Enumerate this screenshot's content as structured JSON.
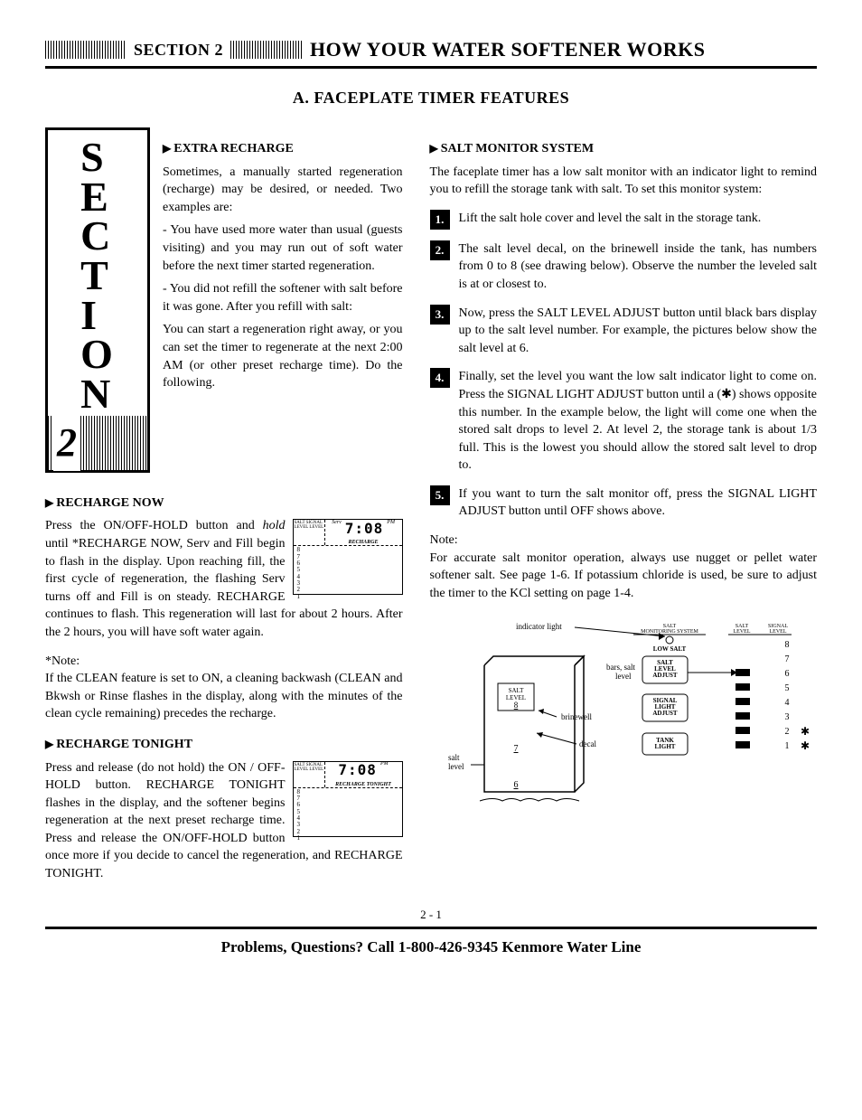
{
  "header": {
    "section_label": "SECTION 2",
    "title": "HOW YOUR WATER SOFTENER WORKS"
  },
  "subtitle": "A. FACEPLATE TIMER FEATURES",
  "side_box": {
    "letters": "S\nE\nC\nT\nI\nO\nN",
    "number": "2"
  },
  "left": {
    "extra_recharge": {
      "heading": "EXTRA RECHARGE",
      "p1": "Sometimes, a manually started regeneration (recharge) may be desired, or needed. Two examples are:",
      "p2": "- You have used more water than usual (guests visiting) and you may run out of soft water before the next timer started regeneration.",
      "p3": "- You did not refill the softener with salt before it was gone. After you refill with salt:",
      "p4": "You can start a regeneration right away, or you can set the timer to regenerate at the next 2:00 AM (or other preset recharge time). Do the following."
    },
    "recharge_now": {
      "heading": "RECHARGE NOW",
      "p1_a": "Press the ON/OFF-HOLD button and ",
      "p1_b": "hold",
      "p1_c": " until *RECHARGE NOW, Serv and Fill begin to flash in the display. Upon reaching fill, the first cycle of regeneration, the flashing Serv turns off and Fill is on steady. RECHARGE continues to flash. This regeneration will last for about 2 hours. After the 2 hours, you will have soft water again.",
      "note_label": "*Note:",
      "note_text": "If the CLEAN feature is set to ON, a cleaning backwash (CLEAN and Bkwsh or Rinse flashes in the display, along with the minutes of the clean cycle remaining) precedes the recharge.",
      "lcd": {
        "header": "SALT SIGNAL\nLEVEL LEVEL",
        "serv": "Serv",
        "pm": "PM",
        "time": "7:08",
        "recharge": "RECHARGE",
        "nums": "8\n7\n6\n5\n4\n3\n2\n1"
      }
    },
    "recharge_tonight": {
      "heading": "RECHARGE TONIGHT",
      "text": "Press and release (do not hold) the ON / OFF-HOLD button. RECHARGE TONIGHT flashes in the display, and the softener begins regeneration at the next preset recharge time. Press and release the ON/OFF-HOLD button once more if you decide to cancel the regeneration, and RECHARGE TONIGHT.",
      "lcd": {
        "header": "SALT SIGNAL\nLEVEL LEVEL",
        "pm": "PM",
        "time": "7:08",
        "recharge": "RECHARGE TONIGHT",
        "nums": "8\n7\n6\n5\n4\n3\n2\n1"
      }
    }
  },
  "right": {
    "salt_monitor": {
      "heading": "SALT MONITOR SYSTEM",
      "intro": "The faceplate timer has a low salt monitor with an indicator light to remind you to refill the storage tank with salt. To set this monitor system:",
      "steps": [
        "Lift the salt hole cover and level the salt in the storage tank.",
        "The salt level decal, on the brinewell inside the tank, has numbers from 0 to 8 (see drawing below). Observe the number the leveled salt is at or closest to.",
        "Now, press the SALT LEVEL ADJUST button until black bars display up to the salt level number. For example, the pictures below show the salt level at 6.",
        "Finally, set the level you want the low salt indicator light to come on. Press the SIGNAL LIGHT ADJUST button until a (✱) shows opposite this number. In the example below, the light will come one when the stored salt drops to level 2. At level 2, the storage tank is about 1/3 full. This is the lowest you should allow the stored salt level to drop to.",
        "If you want to turn the salt monitor off, press the SIGNAL LIGHT ADJUST button until OFF shows above."
      ],
      "note_label": "Note:",
      "note_text": "For accurate salt monitor operation, always use nugget or pellet water softener salt. See page 1-6. If potassium chloride is used, be sure to adjust the timer to the KCl setting on page 1-4."
    },
    "diagram": {
      "indicator_light": "indicator light",
      "monitoring_system": "SALT\nMONITORING SYSTEM",
      "low_salt": "LOW SALT",
      "salt_level_adjust": "SALT\nLEVEL\nADJUST",
      "signal_light_adjust": "SIGNAL\nLIGHT\nADJUST",
      "tank_light": "TANK\nLIGHT",
      "bars_label": "bars, salt\nlevel",
      "salt_level_box": "SALT\nLEVEL",
      "salt_level_num": "8",
      "brinewell": "brinewell",
      "decal": "decal",
      "salt_level": "salt\nlevel",
      "level_nums": [
        "8",
        "7",
        "6",
        "5",
        "4",
        "3",
        "2",
        "1"
      ],
      "salt_col_header": "SALT\nLEVEL",
      "signal_col_header": "SIGNAL\nLEVEL",
      "tank_num_7": "7",
      "tank_num_6": "6",
      "bar_levels": [
        6,
        5,
        4,
        3,
        2,
        1
      ],
      "star_levels": [
        2,
        1
      ]
    }
  },
  "footer": {
    "page": "2 - 1",
    "help": "Problems, Questions? Call 1-800-426-9345 Kenmore Water Line"
  }
}
